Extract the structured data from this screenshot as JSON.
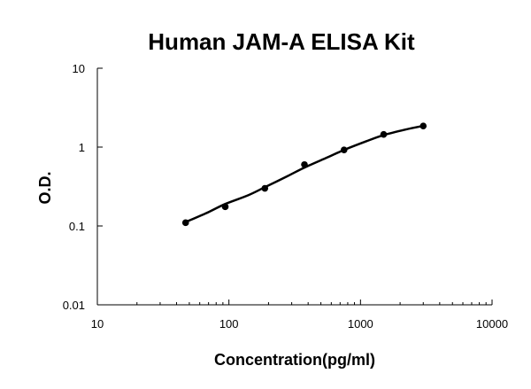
{
  "chart_data": {
    "type": "scatter",
    "title": "Human JAM-A ELISA Kit",
    "xlabel": "Concentration(pg/ml)",
    "ylabel": "O.D.",
    "x_scale": "log",
    "y_scale": "log",
    "xlim": [
      10,
      10000
    ],
    "ylim": [
      0.01,
      10
    ],
    "x_ticks": [
      "10",
      "100",
      "1000",
      "10000"
    ],
    "y_ticks": [
      "0.01",
      "0.1",
      "1",
      "10"
    ],
    "grid": false,
    "legend": "none",
    "series": [
      {
        "x": [
          46.875,
          93.75,
          187.5,
          375,
          750,
          1500,
          3000
        ],
        "y": [
          0.11,
          0.175,
          0.3,
          0.6,
          0.92,
          1.45,
          1.85
        ]
      }
    ],
    "fit_curve": {
      "type": "smooth",
      "x": [
        46.875,
        70,
        93.75,
        140,
        187.5,
        280,
        375,
        560,
        750,
        1100,
        1500,
        2200,
        3000
      ],
      "y": [
        0.112,
        0.15,
        0.19,
        0.245,
        0.31,
        0.43,
        0.55,
        0.74,
        0.92,
        1.18,
        1.42,
        1.67,
        1.86
      ]
    },
    "colors": {
      "line": "#000000",
      "marker": "#000000"
    }
  }
}
